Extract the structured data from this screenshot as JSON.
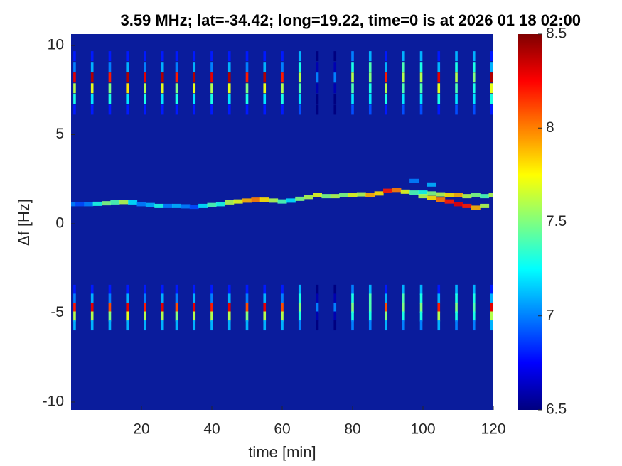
{
  "chart_data": {
    "type": "heatmap",
    "title": "3.59 MHz;  lat=-34.42; long=19.22, time=0 is at 2026 01 18 02:00",
    "xlabel": "time [min]",
    "ylabel": "Δf [Hz]",
    "colormap": "jet",
    "xlim": [
      0,
      120
    ],
    "xticks": [
      20,
      40,
      60,
      80,
      100,
      120
    ],
    "ylim": [
      -10.44,
      10.64
    ],
    "yticks": [
      -10,
      -5,
      0,
      5,
      10
    ],
    "clim": [
      6.5,
      8.5
    ],
    "cticks": [
      6.5,
      7,
      7.5,
      8,
      8.5
    ],
    "x": [
      1,
      6,
      11,
      16,
      21,
      26,
      30,
      35,
      40,
      45,
      50,
      55,
      60,
      65,
      70,
      75,
      80,
      85,
      89.5,
      94.5,
      99.5,
      104.5,
      109.5,
      114.5,
      119.5
    ],
    "y": [
      9.4,
      8.8,
      8.2,
      7.6,
      7.0,
      6.4,
      -3.7,
      -4.2,
      -4.7,
      -5.2,
      -5.7
    ],
    "z": [
      [
        6.8,
        6.8,
        6.8,
        6.8,
        6.8,
        6.8,
        6.8,
        6.8,
        6.8,
        6.8,
        6.8,
        6.8,
        6.8,
        7.1,
        6.5,
        6.5,
        7.0,
        7.1,
        6.8,
        7.1,
        7.1,
        6.8,
        7.1,
        7.1,
        6.8
      ],
      [
        7.0,
        7.1,
        7.0,
        7.1,
        7.0,
        7.1,
        7.0,
        7.1,
        7.0,
        7.1,
        7.0,
        7.1,
        7.0,
        7.3,
        6.6,
        6.6,
        7.3,
        7.4,
        7.1,
        7.4,
        7.3,
        7.1,
        7.3,
        7.3,
        7.1
      ],
      [
        8.3,
        8.4,
        8.2,
        8.4,
        8.3,
        8.4,
        8.2,
        8.4,
        8.3,
        8.4,
        8.2,
        8.4,
        8.2,
        7.6,
        7.0,
        7.0,
        7.6,
        7.5,
        8.2,
        7.6,
        7.6,
        8.3,
        7.6,
        7.5,
        8.4
      ],
      [
        7.6,
        7.7,
        7.5,
        7.8,
        7.6,
        7.7,
        7.5,
        7.7,
        7.6,
        7.7,
        7.5,
        7.7,
        7.6,
        7.4,
        6.6,
        6.6,
        7.4,
        7.3,
        7.6,
        7.4,
        7.4,
        7.7,
        7.4,
        7.3,
        7.7
      ],
      [
        7.3,
        7.2,
        7.3,
        7.2,
        7.3,
        7.2,
        7.3,
        7.2,
        7.3,
        7.2,
        7.3,
        7.2,
        7.3,
        7.2,
        6.5,
        6.5,
        7.2,
        7.2,
        7.3,
        7.2,
        7.2,
        7.3,
        7.2,
        7.2,
        7.3
      ],
      [
        6.8,
        6.8,
        6.8,
        6.8,
        6.8,
        6.8,
        6.8,
        6.8,
        6.8,
        6.8,
        6.8,
        6.8,
        6.8,
        6.9,
        6.5,
        6.5,
        6.9,
        6.9,
        6.8,
        6.9,
        6.9,
        6.8,
        6.9,
        6.9,
        6.8
      ],
      [
        6.8,
        6.8,
        6.8,
        6.8,
        6.8,
        6.8,
        6.8,
        6.8,
        6.8,
        6.8,
        6.8,
        6.8,
        6.8,
        7.1,
        6.5,
        6.5,
        7.0,
        7.1,
        6.8,
        7.1,
        7.1,
        6.8,
        7.1,
        7.1,
        6.8
      ],
      [
        7.0,
        7.1,
        7.0,
        7.1,
        7.0,
        7.1,
        7.0,
        7.1,
        7.0,
        7.1,
        7.0,
        7.1,
        7.0,
        7.3,
        6.6,
        6.6,
        7.3,
        7.4,
        7.1,
        7.4,
        7.3,
        7.1,
        7.3,
        7.3,
        7.1
      ],
      [
        8.2,
        8.3,
        8.1,
        8.3,
        8.2,
        8.3,
        8.1,
        8.3,
        8.2,
        8.3,
        8.1,
        8.3,
        8.1,
        7.5,
        7.0,
        7.0,
        7.5,
        7.4,
        8.1,
        7.5,
        7.5,
        8.2,
        7.5,
        7.4,
        8.3
      ],
      [
        7.6,
        7.6,
        7.5,
        7.7,
        7.6,
        7.6,
        7.5,
        7.6,
        7.6,
        7.6,
        7.5,
        7.6,
        7.6,
        7.3,
        6.6,
        6.6,
        7.3,
        7.3,
        7.5,
        7.3,
        7.3,
        7.6,
        7.3,
        7.3,
        7.6
      ],
      [
        7.1,
        7.1,
        7.1,
        7.1,
        7.1,
        7.1,
        7.1,
        7.1,
        7.1,
        7.1,
        7.1,
        7.1,
        7.1,
        7.0,
        6.5,
        6.5,
        7.0,
        7.0,
        7.1,
        7.0,
        7.0,
        7.1,
        7.0,
        7.0,
        7.1
      ]
    ],
    "track": {
      "x": [
        0,
        2.5,
        5,
        7.5,
        10,
        12.5,
        15,
        17.5,
        20,
        22.5,
        25,
        27.5,
        30,
        32.5,
        35,
        37.5,
        40,
        42.5,
        45,
        47.5,
        50,
        52.5,
        55,
        57.5,
        60,
        62.5,
        65,
        67.5,
        70,
        72.5,
        75,
        77.5,
        80,
        82.5,
        85,
        87.5,
        90,
        92.5,
        95,
        97.5,
        100,
        102.5,
        105,
        107.5,
        110,
        112.5,
        115,
        117.5,
        120,
        100,
        102.5,
        105,
        107.5,
        110,
        112.5,
        115,
        117.5,
        97.5,
        102.5
      ],
      "y": [
        1.1,
        1.1,
        1.1,
        1.12,
        1.15,
        1.2,
        1.22,
        1.2,
        1.1,
        1.05,
        1.0,
        1.0,
        1.0,
        0.98,
        0.95,
        1.0,
        1.05,
        1.1,
        1.2,
        1.25,
        1.3,
        1.35,
        1.35,
        1.3,
        1.25,
        1.3,
        1.4,
        1.5,
        1.6,
        1.55,
        1.55,
        1.6,
        1.6,
        1.65,
        1.6,
        1.7,
        1.85,
        1.9,
        1.8,
        1.75,
        1.75,
        1.7,
        1.65,
        1.6,
        1.6,
        1.55,
        1.6,
        1.55,
        1.6,
        1.55,
        1.45,
        1.35,
        1.25,
        1.1,
        1.0,
        0.9,
        1.0,
        2.4,
        2.2
      ],
      "z": [
        7.0,
        6.9,
        7.0,
        7.3,
        7.5,
        7.4,
        7.6,
        7.2,
        7.0,
        7.1,
        7.3,
        7.0,
        7.1,
        7.0,
        6.9,
        7.2,
        7.4,
        7.3,
        7.6,
        7.7,
        7.9,
        8.0,
        7.8,
        7.6,
        7.4,
        7.2,
        7.5,
        7.6,
        7.7,
        7.5,
        7.6,
        7.5,
        7.7,
        7.6,
        7.9,
        7.8,
        8.2,
        8.0,
        7.7,
        7.4,
        7.3,
        7.5,
        7.6,
        7.8,
        7.9,
        7.6,
        7.5,
        7.4,
        7.6,
        7.6,
        7.8,
        8.0,
        8.2,
        8.3,
        8.2,
        7.9,
        7.6,
        7.0,
        7.1
      ]
    }
  }
}
